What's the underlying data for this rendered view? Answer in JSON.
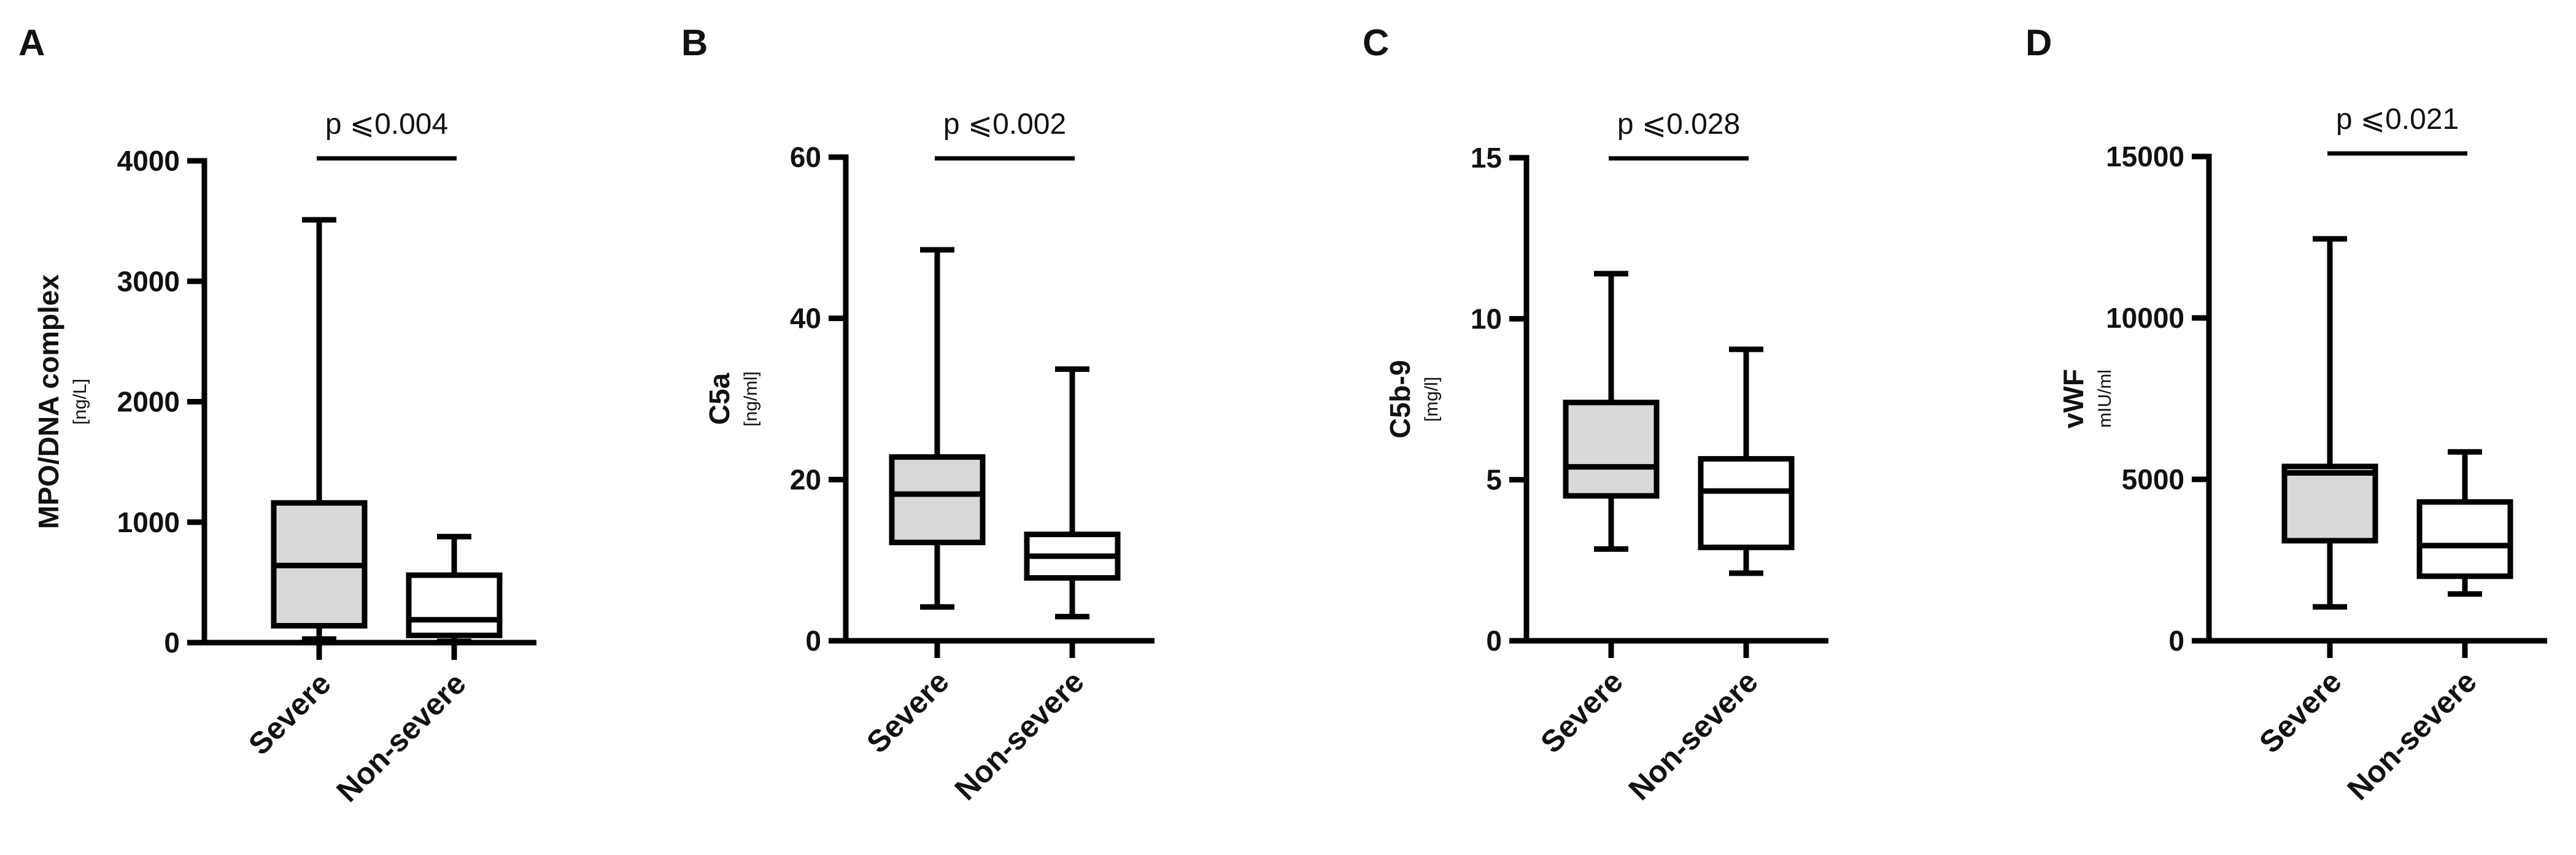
{
  "chart_data": [
    {
      "type": "box",
      "panel_label": "A",
      "ylabel": "MPO/DNA complex",
      "yunit": "[ng/L]",
      "ylim": [
        0,
        4000
      ],
      "yticks": [
        0,
        1000,
        2000,
        3000,
        4000
      ],
      "ytick_labels": [
        "0",
        "1000",
        "2000",
        "3000",
        "4000"
      ],
      "categories": [
        "Severe",
        "Non-severe"
      ],
      "boxes": [
        {
          "name": "Severe",
          "min": 30,
          "q1": 140,
          "median": 640,
          "q3": 1160,
          "max": 3510,
          "fill": "#d9d9d9"
        },
        {
          "name": "Non-severe",
          "min": 10,
          "q1": 60,
          "median": 190,
          "q3": 560,
          "max": 880,
          "fill": "#ffffff"
        }
      ],
      "annotation": "p ⩽0.004"
    },
    {
      "type": "box",
      "panel_label": "B",
      "ylabel": "C5a",
      "yunit": "[ng/ml]",
      "ylim": [
        0,
        60
      ],
      "yticks": [
        0,
        20,
        40,
        60
      ],
      "ytick_labels": [
        "0",
        "20",
        "40",
        "60"
      ],
      "categories": [
        "Severe",
        "Non-severe"
      ],
      "boxes": [
        {
          "name": "Severe",
          "min": 4.2,
          "q1": 12.2,
          "median": 18.2,
          "q3": 22.8,
          "max": 48.5,
          "fill": "#d9d9d9"
        },
        {
          "name": "Non-severe",
          "min": 3.0,
          "q1": 7.8,
          "median": 10.5,
          "q3": 13.2,
          "max": 33.7,
          "fill": "#ffffff"
        }
      ],
      "annotation": "p ⩽0.002"
    },
    {
      "type": "box",
      "panel_label": "C",
      "ylabel": "C5b-9",
      "yunit": "[mg/l]",
      "ylim": [
        0,
        15
      ],
      "yticks": [
        0,
        5,
        10,
        15
      ],
      "ytick_labels": [
        "0",
        "5",
        "10",
        "15"
      ],
      "categories": [
        "Severe",
        "Non-severe"
      ],
      "boxes": [
        {
          "name": "Severe",
          "min": 2.85,
          "q1": 4.5,
          "median": 5.4,
          "q3": 7.4,
          "max": 11.4,
          "fill": "#d9d9d9"
        },
        {
          "name": "Non-severe",
          "min": 2.1,
          "q1": 2.9,
          "median": 4.65,
          "q3": 5.65,
          "max": 9.05,
          "fill": "#ffffff"
        }
      ],
      "annotation": "p ⩽0.028"
    },
    {
      "type": "box",
      "panel_label": "D",
      "ylabel": "vWF",
      "yunit": "mIU/ml",
      "ylim": [
        0,
        15000
      ],
      "yticks": [
        0,
        5000,
        10000,
        15000
      ],
      "ytick_labels": [
        "0",
        "5000",
        "10000",
        "15000"
      ],
      "categories": [
        "Severe",
        "Non-severe"
      ],
      "boxes": [
        {
          "name": "Severe",
          "min": 1050,
          "q1": 3100,
          "median": 5200,
          "q3": 5400,
          "max": 12450,
          "fill": "#d9d9d9"
        },
        {
          "name": "Non-severe",
          "min": 1450,
          "q1": 2000,
          "median": 2950,
          "q3": 4300,
          "max": 5850,
          "fill": "#ffffff"
        }
      ],
      "annotation": "p ⩽0.021"
    }
  ]
}
